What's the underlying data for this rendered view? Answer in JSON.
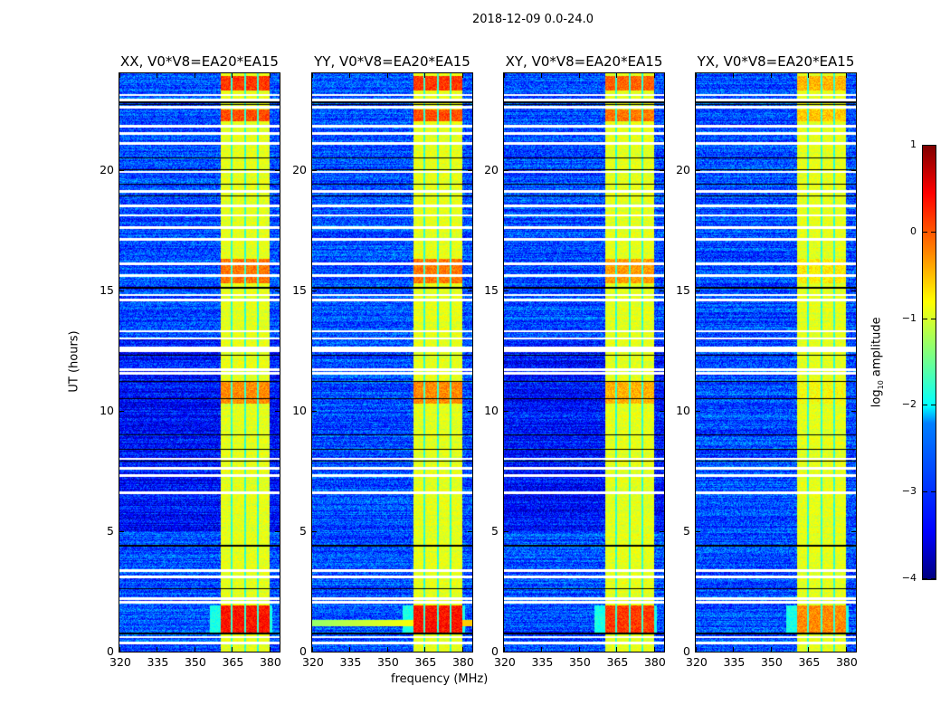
{
  "figure_title": "2018-12-09 0.0-24.0",
  "chart_data": [
    {
      "type": "heatmap",
      "title": "XX, V0*V8=EA20*EA15",
      "xlim": [
        320,
        384
      ],
      "ylim": [
        0,
        24
      ],
      "xticks": [
        "320",
        "335",
        "350",
        "365",
        "380"
      ],
      "xtick_values": [
        320,
        335,
        350,
        365,
        380
      ],
      "yticks": [
        "0",
        "5",
        "10",
        "15",
        "20"
      ],
      "ytick_values": [
        0,
        5,
        10,
        15,
        20
      ],
      "ylabel": "UT (hours)",
      "xlabel": ""
    },
    {
      "type": "heatmap",
      "title": "YY, V0*V8=EA20*EA15",
      "xlim": [
        320,
        384
      ],
      "ylim": [
        0,
        24
      ],
      "xticks": [
        "320",
        "335",
        "350",
        "365",
        "380"
      ],
      "xtick_values": [
        320,
        335,
        350,
        365,
        380
      ],
      "yticks": [
        "0",
        "5",
        "10",
        "15",
        "20"
      ],
      "ytick_values": [
        0,
        5,
        10,
        15,
        20
      ],
      "ylabel": "",
      "xlabel": "frequency (MHz)"
    },
    {
      "type": "heatmap",
      "title": "XY, V0*V8=EA20*EA15",
      "xlim": [
        320,
        384
      ],
      "ylim": [
        0,
        24
      ],
      "xticks": [
        "320",
        "335",
        "350",
        "365",
        "380"
      ],
      "xtick_values": [
        320,
        335,
        350,
        365,
        380
      ],
      "yticks": [
        "0",
        "5",
        "10",
        "15",
        "20"
      ],
      "ytick_values": [
        0,
        5,
        10,
        15,
        20
      ],
      "ylabel": "",
      "xlabel": ""
    },
    {
      "type": "heatmap",
      "title": "YX, V0*V8=EA20*EA15",
      "xlim": [
        320,
        384
      ],
      "ylim": [
        0,
        24
      ],
      "xticks": [
        "320",
        "335",
        "350",
        "365",
        "380"
      ],
      "xtick_values": [
        320,
        335,
        350,
        365,
        380
      ],
      "yticks": [
        "0",
        "5",
        "10",
        "15",
        "20"
      ],
      "ytick_values": [
        0,
        5,
        10,
        15,
        20
      ],
      "ylabel": "",
      "xlabel": ""
    }
  ],
  "signal": {
    "band_mhz": [
      360.4,
      379.9
    ],
    "gaps_mhz": [
      364.8,
      370.2,
      375.3
    ],
    "background_log10": -3,
    "band_log10": -1,
    "events": [
      {
        "t": [
          0.8,
          1.9
        ],
        "level": 0.3
      },
      {
        "t": [
          10.3,
          11.2
        ],
        "level": -0.3
      },
      {
        "t": [
          15.3,
          16.3
        ],
        "level": -0.2
      },
      {
        "t": [
          22.0,
          22.5
        ],
        "level": 0
      },
      {
        "t": [
          23.3,
          23.9
        ],
        "level": 0.1
      }
    ],
    "flagged_hours": [
      0.35,
      0.6,
      2.05,
      2.2,
      3.1,
      3.35,
      6.6,
      7.3,
      7.6,
      8.0,
      11.55,
      11.7,
      12.5,
      12.6,
      13.0,
      13.3,
      14.6,
      14.8,
      15.6,
      16.1,
      17.1,
      17.6,
      18.1,
      18.5,
      19.1,
      19.9,
      21.1,
      21.5,
      21.8,
      22.6,
      22.9,
      23.1
    ],
    "dropout_hours": [
      0.75,
      2.6,
      4.4,
      7.9,
      8.4,
      9.0,
      10.5,
      11.2,
      12.3,
      15.1,
      18.9,
      19.4,
      20.0,
      20.5,
      22.7,
      22.8
    ]
  },
  "colorbar": {
    "label": "log10 amplitude",
    "label_main": "log",
    "label_sub": "10",
    "label_rest": " amplitude",
    "range": [
      -4,
      1
    ],
    "ticks": [
      "1",
      "0",
      "−1",
      "−2",
      "−3",
      "−4"
    ],
    "tick_values": [
      1,
      0,
      -1,
      -2,
      -3,
      -4
    ],
    "colormap": "jet"
  }
}
